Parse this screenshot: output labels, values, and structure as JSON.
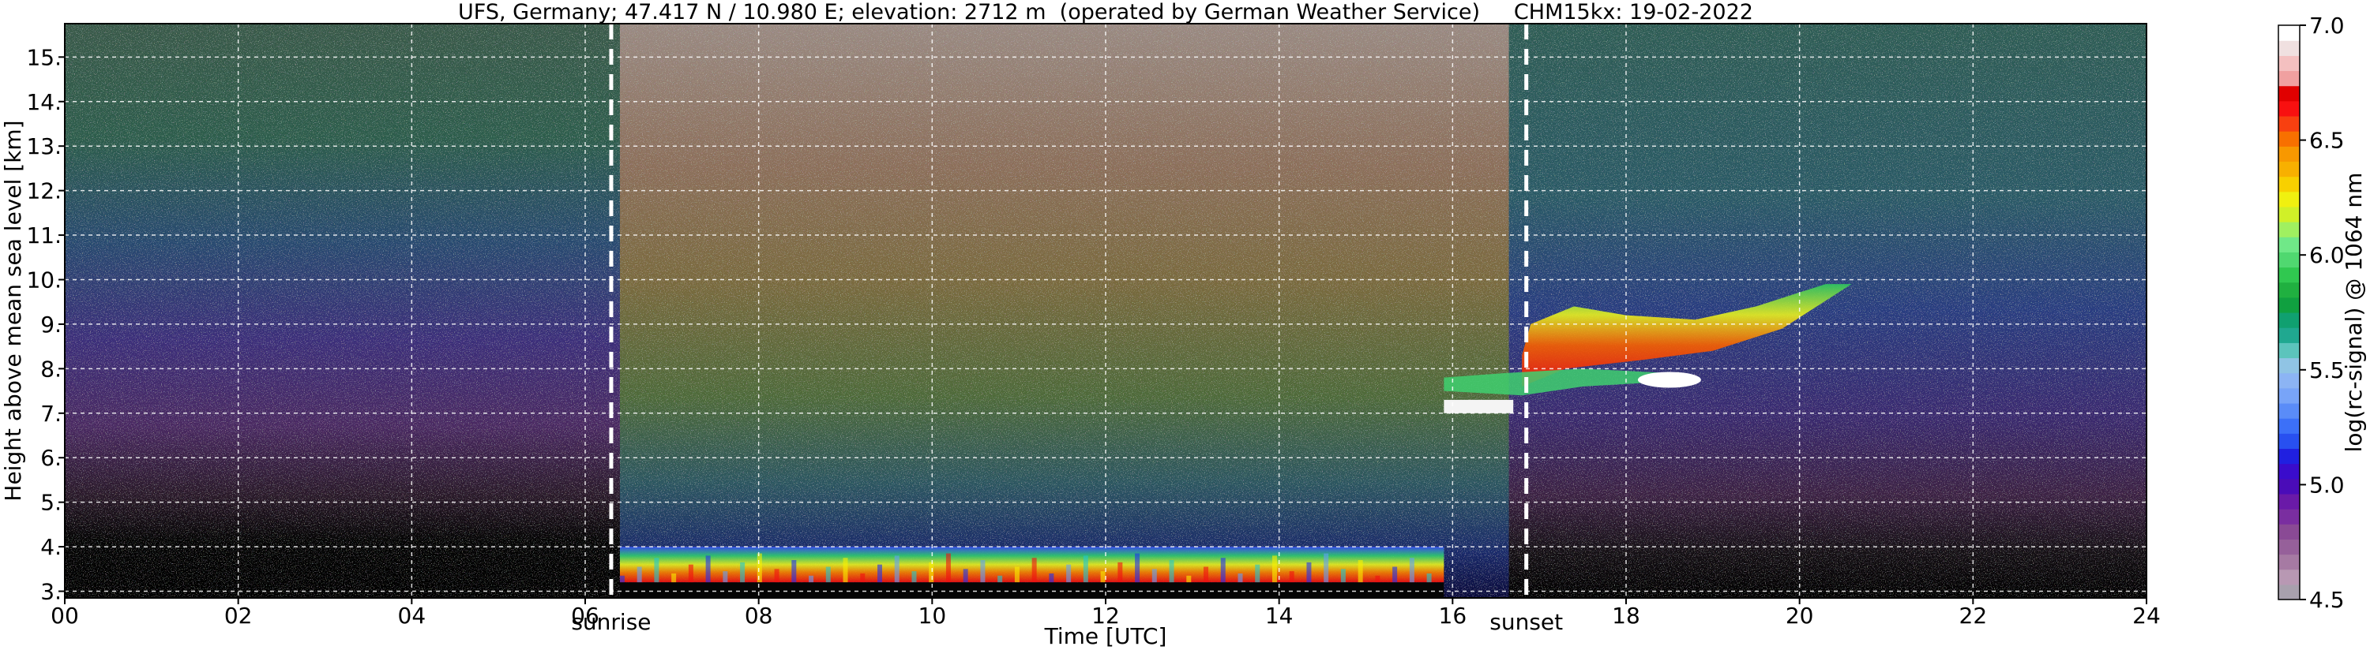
{
  "chart_data": {
    "type": "heatmap",
    "title": "UFS, Germany; 47.417 N / 10.980 E; elevation: 2712 m  (operated by German Weather Service)     CHM15kx: 19-02-2022",
    "xlabel": "Time [UTC]",
    "ylabel": "Height above mean sea level [km]",
    "xlim": [
      0,
      24
    ],
    "ylim": [
      2.85,
      15.75
    ],
    "x_ticks": [
      0,
      2,
      4,
      6,
      8,
      10,
      12,
      14,
      16,
      18,
      20,
      22,
      24
    ],
    "x_tick_labels": [
      "00",
      "02",
      "04",
      "06",
      "08",
      "10",
      "12",
      "14",
      "16",
      "18",
      "20",
      "22",
      "24"
    ],
    "y_ticks": [
      3,
      4,
      5,
      6,
      7,
      8,
      9,
      10,
      11,
      12,
      13,
      14,
      15
    ],
    "y_tick_labels": [
      "3.",
      "4.",
      "5.",
      "6.",
      "7.",
      "8.",
      "9.",
      "10.",
      "11.",
      "12.",
      "13.",
      "14.",
      "15."
    ],
    "grid": true,
    "event_lines": [
      {
        "label": "sunrise",
        "x": 6.3
      },
      {
        "label": "sunset",
        "x": 16.85
      }
    ],
    "colorbar": {
      "label": "log(rc-signal) @ 1064 nm",
      "range": [
        4.5,
        7.0
      ],
      "ticks": [
        4.5,
        5.0,
        5.5,
        6.0,
        6.5,
        7.0
      ],
      "tick_labels": [
        "4.5",
        "5.0",
        "5.5",
        "6.0",
        "6.5",
        "7.0"
      ],
      "colors": [
        "#a8a0ad",
        "#b898b3",
        "#a67aa3",
        "#96609a",
        "#8a4a95",
        "#7a2ea0",
        "#6a1aa8",
        "#4a0cb8",
        "#3a0ccc",
        "#2020e0",
        "#2850f0",
        "#3c70f8",
        "#5a8cf8",
        "#78a4f8",
        "#8cb4f4",
        "#90c4e4",
        "#5cc4bc",
        "#20a890",
        "#10a070",
        "#10a040",
        "#20b040",
        "#30c850",
        "#50d870",
        "#70e888",
        "#a0f060",
        "#d0f028",
        "#f0f010",
        "#f8d000",
        "#f8b000",
        "#f89800",
        "#f87000",
        "#f84010",
        "#f81010",
        "#e00000",
        "#f0a0a0",
        "#f4c0c0",
        "#f0e0e0",
        "#ffffff"
      ]
    },
    "features": [
      {
        "name": "boundary-layer backscatter",
        "x_range": [
          6.4,
          15.9
        ],
        "y_range": [
          3.2,
          4.0
        ],
        "level": 6.3
      },
      {
        "name": "cirrus cloud",
        "x_range": [
          16.8,
          20.6
        ],
        "y_range": [
          7.5,
          9.9
        ],
        "level": 6.6
      },
      {
        "name": "cloud-base segment",
        "x_range": [
          15.9,
          16.7
        ],
        "y_range": [
          7.0,
          7.3
        ],
        "level": 7.0
      }
    ]
  }
}
